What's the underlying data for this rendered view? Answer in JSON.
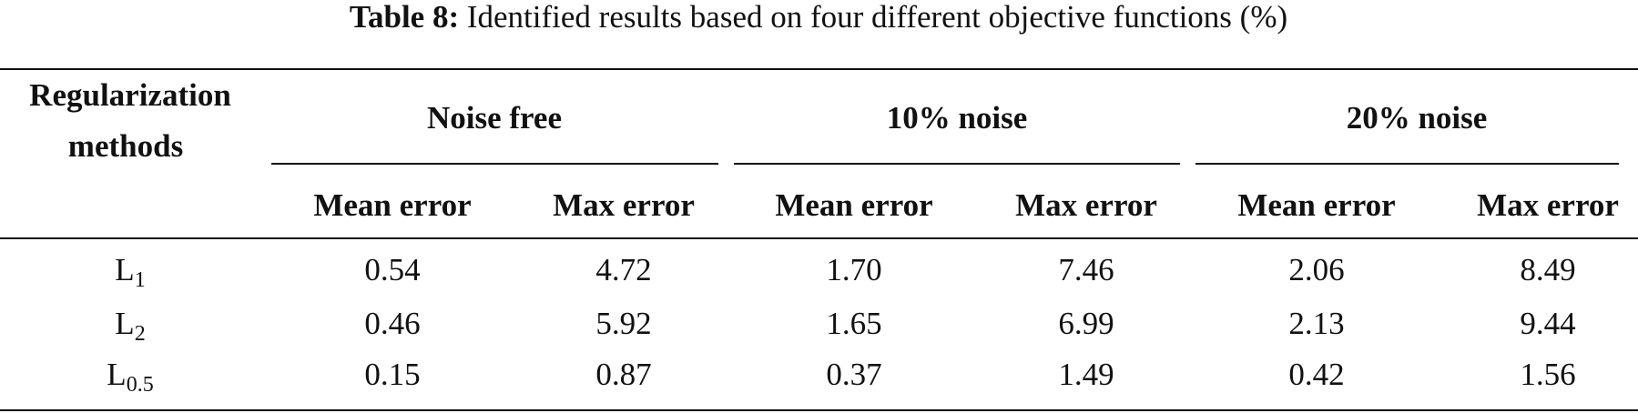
{
  "table": {
    "caption": {
      "label": "Table 8:",
      "text": "Identified results based on four different objective functions (%)"
    },
    "header": {
      "row_header": [
        "Regularization",
        "methods"
      ],
      "groups": [
        "Noise free",
        "10% noise",
        "20% noise"
      ],
      "columns": [
        "Mean error",
        "Max error",
        "Mean error",
        "Max error",
        "Mean error",
        "Max error"
      ]
    },
    "rows": [
      {
        "method": {
          "main": "L",
          "sub": "1"
        },
        "values": [
          "0.54",
          "4.72",
          "1.70",
          "7.46",
          "2.06",
          "8.49"
        ]
      },
      {
        "method": {
          "main": "L",
          "sub": "2"
        },
        "values": [
          "0.46",
          "5.92",
          "1.65",
          "6.99",
          "2.13",
          "9.44"
        ]
      },
      {
        "method": {
          "main": "L",
          "sub": "0.5"
        },
        "values": [
          "0.15",
          "0.87",
          "0.37",
          "1.49",
          "0.42",
          "1.56"
        ]
      }
    ]
  }
}
